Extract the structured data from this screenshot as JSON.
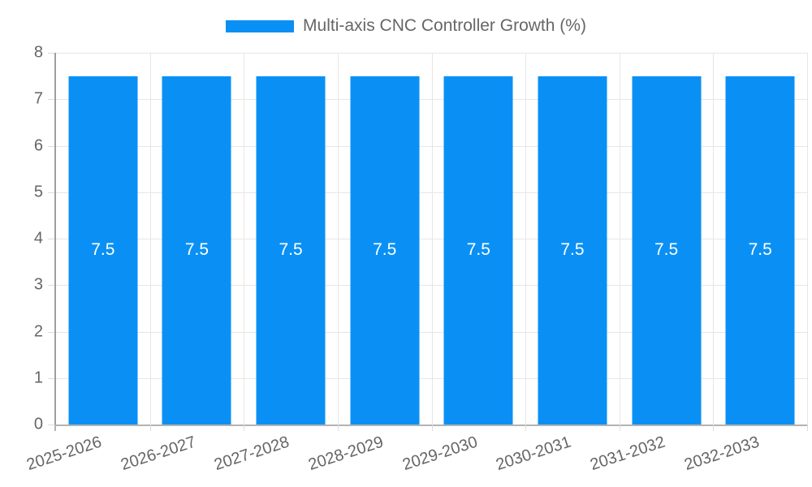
{
  "legend": {
    "label": "Multi-axis CNC Controller Growth (%)"
  },
  "chart_data": {
    "type": "bar",
    "title": "Multi-axis CNC Controller Growth (%)",
    "categories": [
      "2025-2026",
      "2026-2027",
      "2027-2028",
      "2028-2029",
      "2029-2030",
      "2030-2031",
      "2031-2032",
      "2032-2033"
    ],
    "values": [
      7.5,
      7.5,
      7.5,
      7.5,
      7.5,
      7.5,
      7.5,
      7.5
    ],
    "bar_value_labels": [
      "7.5",
      "7.5",
      "7.5",
      "7.5",
      "7.5",
      "7.5",
      "7.5",
      "7.5"
    ],
    "xlabel": "",
    "ylabel": "",
    "ylim": [
      0,
      8
    ],
    "ytick_step": 1,
    "ytick_labels": [
      "0",
      "1",
      "2",
      "3",
      "4",
      "5",
      "6",
      "7",
      "8"
    ],
    "grid": true,
    "legend_position": "top",
    "x_label_rotation_deg": -18,
    "colors": {
      "bar": "#0a90f5",
      "value_label": "#ffffff",
      "tick_text": "#666666",
      "legend_text": "#666666",
      "gridline": "#e6e6e6",
      "axis_line": "#b3b3b3",
      "background": "#ffffff"
    }
  }
}
